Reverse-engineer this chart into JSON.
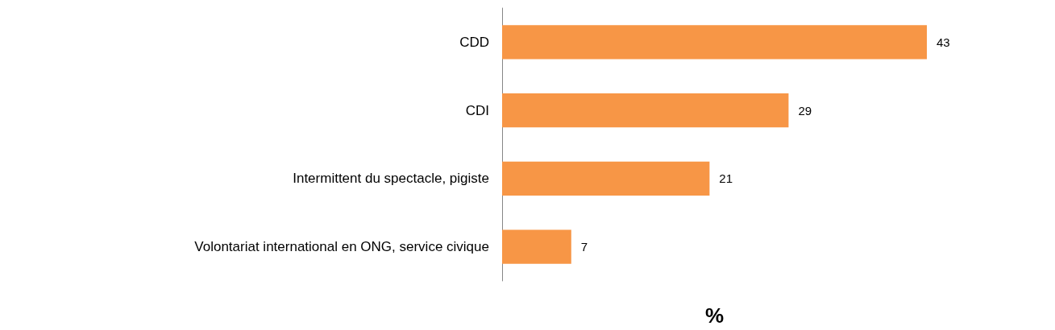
{
  "chart_data": {
    "type": "bar",
    "orientation": "horizontal",
    "xlabel": "%",
    "categories": [
      "CDD",
      "CDI",
      "Intermittent du spectacle, pigiste",
      "Volontariat international en ONG, service civique"
    ],
    "values": [
      43,
      29,
      21,
      7
    ],
    "color": "#f79646",
    "data_labels": true
  }
}
